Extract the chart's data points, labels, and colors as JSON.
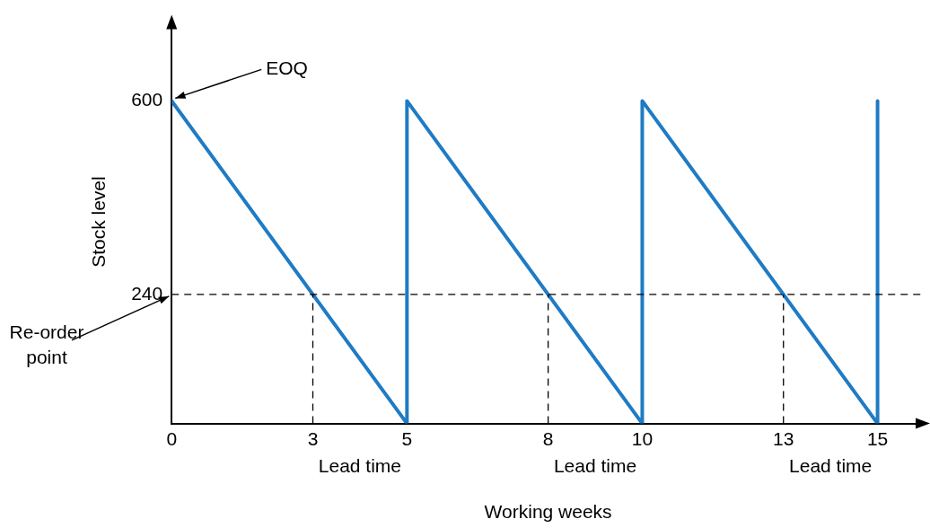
{
  "chart_data": {
    "type": "line",
    "xlabel": "Working weeks",
    "ylabel": "Stock level",
    "x": [
      0,
      5,
      5,
      10,
      10,
      15,
      15
    ],
    "series": [
      {
        "color": "#1f7bc4",
        "values": [
          600,
          0,
          600,
          0,
          600,
          0,
          600
        ]
      }
    ],
    "xlim": [
      0,
      16
    ],
    "xticks": [
      0,
      3,
      5,
      8,
      10,
      13,
      15
    ],
    "ylim": [
      0,
      750
    ],
    "yticks": [
      240,
      600
    ],
    "grid": false,
    "legend": false,
    "marker": "none",
    "line_style": "solid",
    "ref_lines": [
      {
        "axis": "y",
        "value": 240,
        "line_style": "dashed",
        "color": "#000000"
      },
      {
        "axis": "x",
        "value": 3,
        "line_style": "dashed",
        "color": "#000000"
      },
      {
        "axis": "x",
        "value": 8,
        "line_style": "dashed",
        "color": "#000000"
      },
      {
        "axis": "x",
        "value": 13,
        "line_style": "dashed",
        "color": "#000000"
      }
    ],
    "annotations": [
      {
        "text": "EOQ",
        "x": 0,
        "y": 600
      },
      {
        "text": "Re-order point",
        "x": 0,
        "y": 240
      },
      "Lead time",
      "Lead time",
      "Lead time"
    ]
  }
}
